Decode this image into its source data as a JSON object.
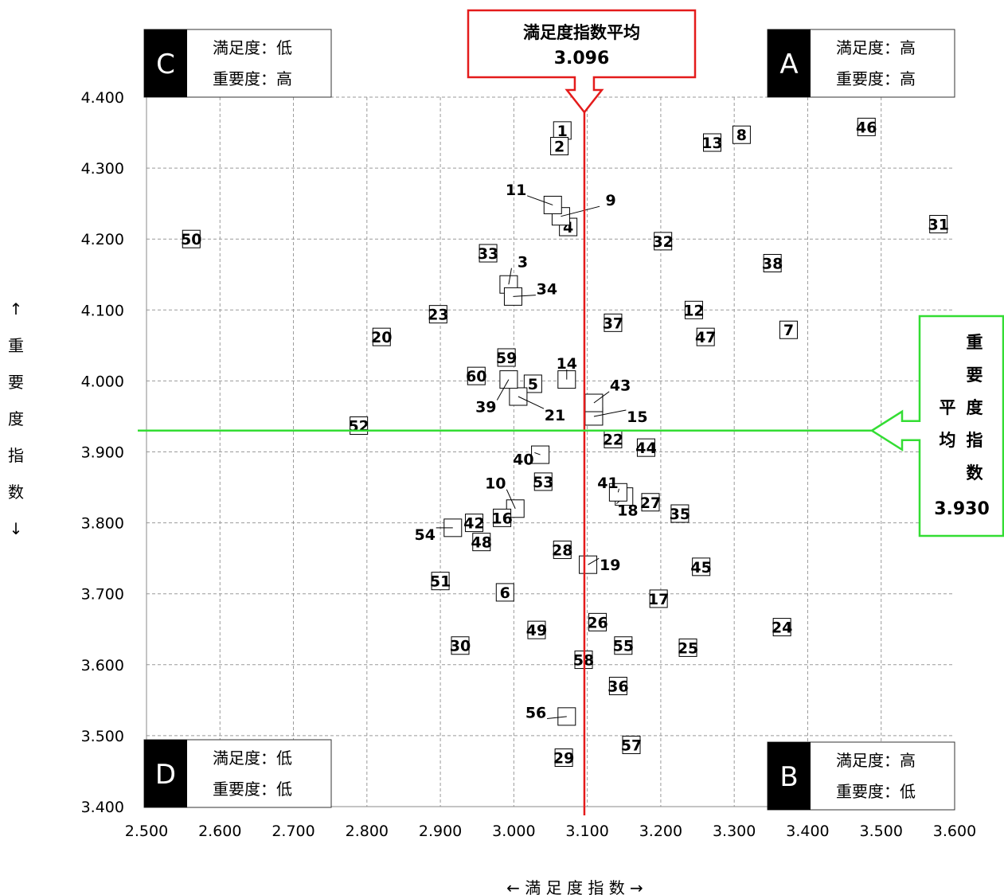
{
  "chart_data": {
    "type": "scatter",
    "xlabel": "← 満 足 度 指 数 →",
    "ylabel_chars": [
      "↑",
      "重",
      "要",
      "度",
      "指",
      "数",
      "↓"
    ],
    "xlim": [
      2.5,
      3.6
    ],
    "ylim": [
      3.4,
      4.4
    ],
    "x_ticks": [
      "2.500",
      "2.600",
      "2.700",
      "2.800",
      "2.900",
      "3.000",
      "3.100",
      "3.200",
      "3.300",
      "3.400",
      "3.500",
      "3.600"
    ],
    "y_ticks": [
      "3.400",
      "3.500",
      "3.600",
      "3.700",
      "3.800",
      "3.900",
      "4.000",
      "4.100",
      "4.200",
      "4.300",
      "4.400"
    ],
    "grid": true,
    "avg_x": {
      "title": "満足度指数平均",
      "value": "3.096",
      "x": 3.096
    },
    "avg_y": {
      "chars_left": [
        "平",
        "均"
      ],
      "chars_right": [
        "重",
        "要",
        "度",
        "指",
        "数"
      ],
      "value": "3.930",
      "y": 3.93
    },
    "quadrants": [
      {
        "letter": "C",
        "line1": "満足度：低",
        "line2": "重要度：高",
        "corner": "top-left"
      },
      {
        "letter": "A",
        "line1": "満足度：高",
        "line2": "重要度：高",
        "corner": "top-right"
      },
      {
        "letter": "D",
        "line1": "満足度：低",
        "line2": "重要度：低",
        "corner": "bottom-left"
      },
      {
        "letter": "B",
        "line1": "満足度：高",
        "line2": "重要度：低",
        "corner": "bottom-right"
      }
    ],
    "points": [
      {
        "label": "1",
        "x": 3.066,
        "y": 4.353
      },
      {
        "label": "2",
        "x": 3.062,
        "y": 4.331
      },
      {
        "label": "3",
        "x": 2.993,
        "y": 4.136,
        "lx": 3.012,
        "ly": 4.168
      },
      {
        "label": "4",
        "x": 3.074,
        "y": 4.217
      },
      {
        "label": "5",
        "x": 3.026,
        "y": 3.996
      },
      {
        "label": "6",
        "x": 2.988,
        "y": 3.702
      },
      {
        "label": "7",
        "x": 3.374,
        "y": 4.072
      },
      {
        "label": "8",
        "x": 3.31,
        "y": 4.347
      },
      {
        "label": "9",
        "x": 3.064,
        "y": 4.232,
        "lx": 3.132,
        "ly": 4.255
      },
      {
        "label": "10",
        "x": 3.002,
        "y": 3.82,
        "lx": 2.975,
        "ly": 3.856
      },
      {
        "label": "11",
        "x": 3.053,
        "y": 4.248,
        "lx": 3.003,
        "ly": 4.27
      },
      {
        "label": "12",
        "x": 3.245,
        "y": 4.1
      },
      {
        "label": "13",
        "x": 3.27,
        "y": 4.336
      },
      {
        "label": "14",
        "x": 3.072,
        "y": 4.002,
        "lx": 3.072,
        "ly": 4.025
      },
      {
        "label": "15",
        "x": 3.109,
        "y": 3.95,
        "lx": 3.168,
        "ly": 3.95
      },
      {
        "label": "16",
        "x": 2.984,
        "y": 3.807
      },
      {
        "label": "17",
        "x": 3.197,
        "y": 3.693
      },
      {
        "label": "18",
        "x": 3.15,
        "y": 3.837,
        "lx": 3.155,
        "ly": 3.818
      },
      {
        "label": "19",
        "x": 3.101,
        "y": 3.741,
        "lx": 3.131,
        "ly": 3.741
      },
      {
        "label": "20",
        "x": 2.82,
        "y": 4.062
      },
      {
        "label": "21",
        "x": 3.006,
        "y": 3.978,
        "lx": 3.056,
        "ly": 3.952
      },
      {
        "label": "22",
        "x": 3.135,
        "y": 3.918
      },
      {
        "label": "23",
        "x": 2.897,
        "y": 4.094
      },
      {
        "label": "24",
        "x": 3.365,
        "y": 3.653
      },
      {
        "label": "25",
        "x": 3.237,
        "y": 3.624
      },
      {
        "label": "26",
        "x": 3.114,
        "y": 3.66
      },
      {
        "label": "27",
        "x": 3.186,
        "y": 3.829
      },
      {
        "label": "28",
        "x": 3.066,
        "y": 3.762
      },
      {
        "label": "29",
        "x": 3.068,
        "y": 3.469
      },
      {
        "label": "30",
        "x": 2.927,
        "y": 3.627
      },
      {
        "label": "31",
        "x": 3.578,
        "y": 4.221
      },
      {
        "label": "32",
        "x": 3.203,
        "y": 4.197
      },
      {
        "label": "33",
        "x": 2.965,
        "y": 4.18
      },
      {
        "label": "34",
        "x": 2.999,
        "y": 4.119,
        "lx": 3.045,
        "ly": 4.13
      },
      {
        "label": "35",
        "x": 3.226,
        "y": 3.813
      },
      {
        "label": "36",
        "x": 3.142,
        "y": 3.57
      },
      {
        "label": "37",
        "x": 3.135,
        "y": 4.082
      },
      {
        "label": "38",
        "x": 3.352,
        "y": 4.166
      },
      {
        "label": "39",
        "x": 2.993,
        "y": 4.002,
        "lx": 2.962,
        "ly": 3.964
      },
      {
        "label": "40",
        "x": 3.036,
        "y": 3.896,
        "lx": 3.013,
        "ly": 3.89
      },
      {
        "label": "41",
        "x": 3.142,
        "y": 3.843,
        "lx": 3.128,
        "ly": 3.857
      },
      {
        "label": "42",
        "x": 2.946,
        "y": 3.8
      },
      {
        "label": "43",
        "x": 3.109,
        "y": 3.969,
        "lx": 3.145,
        "ly": 3.994
      },
      {
        "label": "44",
        "x": 3.18,
        "y": 3.906
      },
      {
        "label": "45",
        "x": 3.255,
        "y": 3.738
      },
      {
        "label": "46",
        "x": 3.48,
        "y": 4.358
      },
      {
        "label": "47",
        "x": 3.261,
        "y": 4.062
      },
      {
        "label": "48",
        "x": 2.956,
        "y": 3.773
      },
      {
        "label": "49",
        "x": 3.031,
        "y": 3.649
      },
      {
        "label": "50",
        "x": 2.561,
        "y": 4.2
      },
      {
        "label": "51",
        "x": 2.9,
        "y": 3.718
      },
      {
        "label": "52",
        "x": 2.789,
        "y": 3.937
      },
      {
        "label": "53",
        "x": 3.04,
        "y": 3.858
      },
      {
        "label": "54",
        "x": 2.917,
        "y": 3.793,
        "lx": 2.879,
        "ly": 3.784
      },
      {
        "label": "55",
        "x": 3.149,
        "y": 3.627
      },
      {
        "label": "56",
        "x": 3.072,
        "y": 3.527,
        "lx": 3.03,
        "ly": 3.533
      },
      {
        "label": "57",
        "x": 3.16,
        "y": 3.487
      },
      {
        "label": "58",
        "x": 3.095,
        "y": 3.607
      },
      {
        "label": "59",
        "x": 2.99,
        "y": 4.033
      },
      {
        "label": "60",
        "x": 2.949,
        "y": 4.007
      }
    ]
  },
  "colors": {
    "avg_x": "#e41b1b",
    "avg_y": "#33dd33",
    "grid": "#9a9a9a",
    "quadrant_letter_bg": "#000000"
  }
}
